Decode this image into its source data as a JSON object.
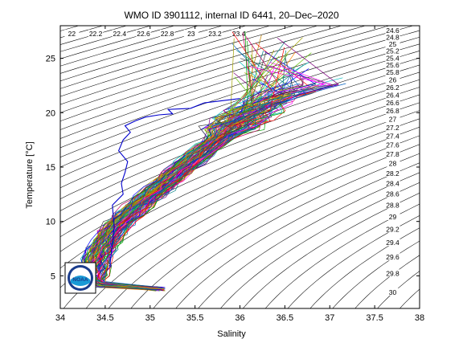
{
  "chart_data": {
    "type": "line",
    "title": "WMO ID 3901112, internal ID 6441, 20–Dec–2020",
    "xlabel": "Salinity",
    "ylabel": "Temperature [°C]",
    "xlim": [
      34,
      38
    ],
    "ylim": [
      2,
      28
    ],
    "x_ticks": [
      "34",
      "34.5",
      "35",
      "35.5",
      "36",
      "36.5",
      "37",
      "37.5",
      "38"
    ],
    "y_ticks": [
      "5",
      "10",
      "15",
      "20",
      "25"
    ],
    "grid": false,
    "isopycnal_labels": [
      "21.6",
      "22",
      "22.2",
      "22.4",
      "22.6",
      "22.8",
      "23",
      "23.2",
      "23.4",
      "23.6",
      "23.8",
      "24",
      "24.2",
      "24.4",
      "24.6",
      "24.8",
      "25",
      "25.2",
      "25.4",
      "25.6",
      "25.8",
      "26",
      "26.2",
      "26.4",
      "26.6",
      "26.8",
      "27",
      "27.2",
      "27.4",
      "27.6",
      "27.8",
      "28",
      "28.2",
      "28.4",
      "28.6",
      "28.8",
      "29",
      "29.2",
      "29.4",
      "29.6",
      "29.8",
      "30"
    ],
    "profile_envelope": {
      "x": [
        34.32,
        34.42,
        34.62,
        34.95,
        35.3,
        35.6,
        35.85,
        36.05,
        36.2,
        36.3,
        36.45,
        36.6,
        36.85
      ],
      "y": [
        3.6,
        7,
        9.5,
        12,
        14.5,
        16.5,
        18.2,
        19.5,
        20.5,
        21,
        21.6,
        22,
        22.6
      ]
    },
    "last_profile": {
      "x": [
        34.55,
        34.6,
        34.58,
        34.7,
        34.68,
        34.72,
        34.75,
        34.65,
        34.7,
        34.78,
        34.72,
        34.85,
        34.95,
        35.1,
        35.25,
        35.2,
        35.45,
        35.6,
        35.9,
        36.0
      ],
      "y": [
        5.8,
        9.5,
        11.5,
        12.5,
        13.5,
        14.5,
        15.5,
        16.5,
        17.5,
        18.2,
        18.8,
        19.3,
        19.6,
        19.8,
        19.9,
        20.3,
        20.4,
        20.9,
        21.2,
        21.3
      ]
    },
    "logo_text": "NOAA"
  }
}
